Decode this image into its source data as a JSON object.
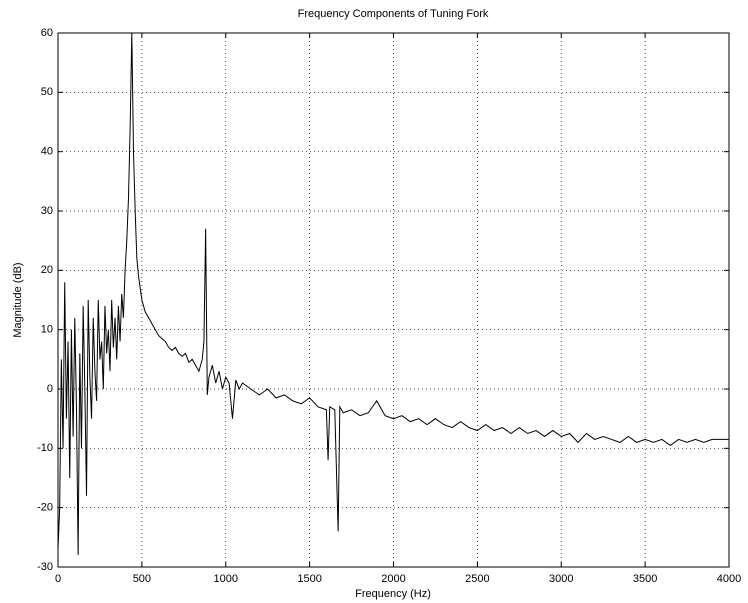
{
  "chart_data": {
    "type": "line",
    "title": "Frequency Components of Tuning Fork",
    "xlabel": "Frequency (Hz)",
    "ylabel": "Magnitude (dB)",
    "color": "#000000",
    "grid": true,
    "xlim": [
      0,
      4000
    ],
    "ylim": [
      -30,
      60
    ],
    "xticks": [
      0,
      500,
      1000,
      1500,
      2000,
      2500,
      3000,
      3500,
      4000
    ],
    "yticks": [
      -30,
      -20,
      -10,
      0,
      10,
      20,
      30,
      40,
      50,
      60
    ],
    "x": [
      0,
      10,
      20,
      30,
      40,
      50,
      60,
      70,
      80,
      90,
      100,
      110,
      120,
      130,
      140,
      150,
      160,
      170,
      180,
      190,
      200,
      210,
      220,
      230,
      240,
      250,
      260,
      270,
      280,
      290,
      300,
      310,
      320,
      330,
      340,
      350,
      360,
      370,
      380,
      390,
      400,
      410,
      420,
      430,
      440,
      450,
      460,
      470,
      480,
      490,
      500,
      520,
      540,
      560,
      580,
      600,
      620,
      640,
      660,
      680,
      700,
      720,
      740,
      760,
      780,
      800,
      820,
      840,
      860,
      870,
      880,
      890,
      900,
      920,
      940,
      960,
      980,
      1000,
      1020,
      1040,
      1060,
      1080,
      1100,
      1150,
      1200,
      1250,
      1300,
      1350,
      1400,
      1450,
      1500,
      1550,
      1600,
      1610,
      1620,
      1650,
      1670,
      1680,
      1700,
      1750,
      1800,
      1850,
      1900,
      1950,
      2000,
      2050,
      2100,
      2150,
      2200,
      2250,
      2300,
      2350,
      2400,
      2450,
      2500,
      2550,
      2600,
      2650,
      2700,
      2750,
      2800,
      2850,
      2900,
      2950,
      3000,
      3050,
      3100,
      3150,
      3200,
      3250,
      3300,
      3350,
      3400,
      3450,
      3500,
      3550,
      3600,
      3650,
      3700,
      3750,
      3800,
      3850,
      3900,
      3950,
      4000
    ],
    "values": [
      -27,
      -20,
      5,
      -10,
      18,
      -5,
      8,
      -15,
      10,
      -8,
      12,
      -3,
      -28,
      6,
      -10,
      14,
      0,
      -18,
      15,
      2,
      -5,
      12,
      3,
      -2,
      15,
      5,
      8,
      0,
      14,
      6,
      10,
      3,
      15,
      7,
      12,
      5,
      14,
      8,
      16,
      12,
      20,
      25,
      32,
      44,
      60,
      40,
      30,
      22,
      19,
      17,
      15,
      13,
      12,
      11,
      10,
      9,
      8.5,
      8,
      7,
      6.5,
      7,
      6,
      5.5,
      6,
      4.5,
      5,
      4,
      3,
      5,
      8,
      27,
      -1,
      2,
      4,
      1,
      3,
      0,
      2,
      1,
      -5,
      1.5,
      0,
      1,
      0,
      -1,
      0,
      -1.5,
      -1,
      -2,
      -2.5,
      -1.5,
      -3,
      -3.5,
      -12,
      -3,
      -3.5,
      -24,
      -3,
      -4,
      -3.5,
      -4.5,
      -4,
      -2,
      -4.5,
      -5,
      -4.5,
      -5.5,
      -5,
      -6,
      -5,
      -6,
      -6.5,
      -5.5,
      -6.5,
      -7,
      -6,
      -7,
      -6.5,
      -7.5,
      -6.5,
      -7.5,
      -7,
      -8,
      -7,
      -8,
      -7.5,
      -9,
      -7.5,
      -8.5,
      -8,
      -8.5,
      -9,
      -8,
      -9,
      -8.5,
      -9,
      -8.5,
      -9.5,
      -8.5,
      -9,
      -8.5,
      -9,
      -8.5,
      -8.5,
      -8.5
    ]
  }
}
